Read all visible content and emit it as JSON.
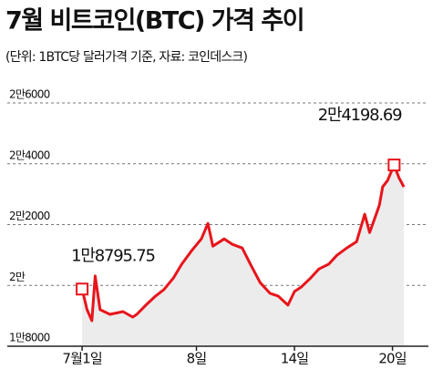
{
  "chart_data": {
    "type": "line",
    "title": "7월 비트코인(BTC) 가격 추이",
    "subtitle": "(단위: 1BTC당 달러가격 기준, 자료: 코인데스크)",
    "x": [
      1.0,
      1.3,
      1.6,
      1.8,
      2.1,
      2.7,
      3.5,
      4.1,
      4.35,
      4.9,
      5.5,
      6.0,
      6.6,
      7.1,
      7.7,
      8.3,
      8.7,
      9.0,
      9.7,
      10.2,
      10.8,
      11.3,
      11.9,
      12.5,
      13.0,
      13.6,
      14.0,
      14.4,
      15.0,
      15.5,
      16.1,
      16.6,
      17.2,
      17.8,
      18.3,
      18.6,
      18.9,
      19.2,
      19.4,
      19.7,
      20.1,
      20.4,
      20.7
    ],
    "values": [
      19880,
      19200,
      18840,
      20310,
      19200,
      19050,
      19140,
      18960,
      19050,
      19350,
      19650,
      19860,
      20250,
      20700,
      21140,
      21530,
      22040,
      21290,
      21530,
      21350,
      21230,
      20700,
      20090,
      19740,
      19650,
      19350,
      19800,
      19940,
      20250,
      20540,
      20700,
      20990,
      21230,
      21440,
      22340,
      21740,
      22190,
      22640,
      23240,
      23450,
      23960,
      23540,
      23240
    ],
    "color": "#e8141b",
    "area_color": "#ececec",
    "xlim": [
      -0.4,
      22.2
    ],
    "xticks": [
      {
        "value": 1,
        "label": "7월1일"
      },
      {
        "value": 8,
        "label": "8일"
      },
      {
        "value": 14,
        "label": "14일"
      },
      {
        "value": 20,
        "label": "20일"
      }
    ],
    "ylim": [
      18000,
      26000
    ],
    "yticks": [
      {
        "value": 18000,
        "label": "1만8000"
      },
      {
        "value": 20000,
        "label": "2만"
      },
      {
        "value": 22000,
        "label": "2만2000"
      },
      {
        "value": 24000,
        "label": "2만4000"
      },
      {
        "value": 26000,
        "label": "2만6000"
      }
    ],
    "grid": true,
    "annotations": [
      {
        "text": "1만8795.75"
      },
      {
        "text": "2만4198.69"
      }
    ]
  }
}
